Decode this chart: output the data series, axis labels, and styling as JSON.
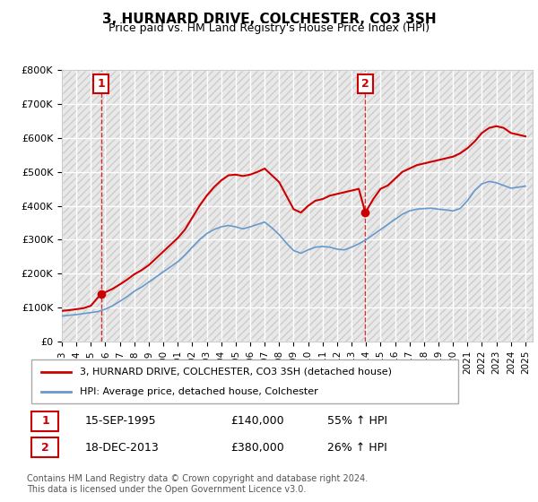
{
  "title": "3, HURNARD DRIVE, COLCHESTER, CO3 3SH",
  "subtitle": "Price paid vs. HM Land Registry's House Price Index (HPI)",
  "ylabel_ticks": [
    "£0",
    "£100K",
    "£200K",
    "£300K",
    "£400K",
    "£500K",
    "£600K",
    "£700K",
    "£800K"
  ],
  "ytick_values": [
    0,
    100000,
    200000,
    300000,
    400000,
    500000,
    600000,
    700000,
    800000
  ],
  "ylim": [
    0,
    800000
  ],
  "xlim_start": 1993.0,
  "xlim_end": 2025.5,
  "background_color": "#ffffff",
  "plot_bg_color": "#f0f0f0",
  "grid_color": "#ffffff",
  "red_line_color": "#cc0000",
  "blue_line_color": "#6699cc",
  "transaction1": {
    "year": 1995.7,
    "price": 140000,
    "label": "1",
    "date": "15-SEP-1995",
    "pct": "55% ↑ HPI"
  },
  "transaction2": {
    "year": 2013.95,
    "price": 380000,
    "label": "2",
    "date": "18-DEC-2013",
    "pct": "26% ↑ HPI"
  },
  "legend_line1": "3, HURNARD DRIVE, COLCHESTER, CO3 3SH (detached house)",
  "legend_line2": "HPI: Average price, detached house, Colchester",
  "footnote": "Contains HM Land Registry data © Crown copyright and database right 2024.\nThis data is licensed under the Open Government Licence v3.0.",
  "table_row1": [
    "1",
    "15-SEP-1995",
    "£140,000",
    "55% ↑ HPI"
  ],
  "table_row2": [
    "2",
    "18-DEC-2013",
    "£380,000",
    "26% ↑ HPI"
  ],
  "red_line_x": [
    1993.0,
    1993.5,
    1994.0,
    1994.5,
    1995.0,
    1995.7,
    1996.0,
    1996.5,
    1997.0,
    1997.5,
    1998.0,
    1998.5,
    1999.0,
    1999.5,
    2000.0,
    2000.5,
    2001.0,
    2001.5,
    2002.0,
    2002.5,
    2003.0,
    2003.5,
    2004.0,
    2004.5,
    2005.0,
    2005.5,
    2006.0,
    2006.5,
    2007.0,
    2007.5,
    2008.0,
    2008.5,
    2009.0,
    2009.5,
    2010.0,
    2010.5,
    2011.0,
    2011.5,
    2012.0,
    2012.5,
    2013.0,
    2013.5,
    2013.95,
    2014.5,
    2015.0,
    2015.5,
    2016.0,
    2016.5,
    2017.0,
    2017.5,
    2018.0,
    2018.5,
    2019.0,
    2019.5,
    2020.0,
    2020.5,
    2021.0,
    2021.5,
    2022.0,
    2022.5,
    2023.0,
    2023.5,
    2024.0,
    2024.5,
    2025.0
  ],
  "red_line_y": [
    90000,
    92000,
    95000,
    98000,
    105000,
    140000,
    145000,
    155000,
    168000,
    182000,
    198000,
    210000,
    225000,
    245000,
    265000,
    285000,
    305000,
    330000,
    365000,
    400000,
    430000,
    455000,
    475000,
    490000,
    492000,
    488000,
    492000,
    500000,
    510000,
    490000,
    470000,
    430000,
    390000,
    380000,
    400000,
    415000,
    420000,
    430000,
    435000,
    440000,
    445000,
    450000,
    380000,
    420000,
    450000,
    460000,
    480000,
    500000,
    510000,
    520000,
    525000,
    530000,
    535000,
    540000,
    545000,
    555000,
    570000,
    590000,
    615000,
    630000,
    635000,
    630000,
    615000,
    610000,
    605000
  ],
  "blue_line_x": [
    1993.0,
    1993.5,
    1994.0,
    1994.5,
    1995.0,
    1995.5,
    1996.0,
    1996.5,
    1997.0,
    1997.5,
    1998.0,
    1998.5,
    1999.0,
    1999.5,
    2000.0,
    2000.5,
    2001.0,
    2001.5,
    2002.0,
    2002.5,
    2003.0,
    2003.5,
    2004.0,
    2004.5,
    2005.0,
    2005.5,
    2006.0,
    2006.5,
    2007.0,
    2007.5,
    2008.0,
    2008.5,
    2009.0,
    2009.5,
    2010.0,
    2010.5,
    2011.0,
    2011.5,
    2012.0,
    2012.5,
    2013.0,
    2013.5,
    2014.0,
    2014.5,
    2015.0,
    2015.5,
    2016.0,
    2016.5,
    2017.0,
    2017.5,
    2018.0,
    2018.5,
    2019.0,
    2019.5,
    2020.0,
    2020.5,
    2021.0,
    2021.5,
    2022.0,
    2022.5,
    2023.0,
    2023.5,
    2024.0,
    2024.5,
    2025.0
  ],
  "blue_line_y": [
    75000,
    77000,
    79000,
    82000,
    85000,
    88000,
    95000,
    105000,
    118000,
    132000,
    148000,
    160000,
    175000,
    190000,
    205000,
    220000,
    235000,
    255000,
    278000,
    300000,
    318000,
    330000,
    338000,
    342000,
    338000,
    332000,
    338000,
    345000,
    352000,
    335000,
    315000,
    290000,
    268000,
    260000,
    270000,
    278000,
    280000,
    278000,
    272000,
    270000,
    278000,
    288000,
    300000,
    315000,
    330000,
    345000,
    360000,
    375000,
    385000,
    390000,
    392000,
    393000,
    390000,
    388000,
    385000,
    392000,
    415000,
    445000,
    465000,
    472000,
    468000,
    460000,
    452000,
    455000,
    458000
  ]
}
